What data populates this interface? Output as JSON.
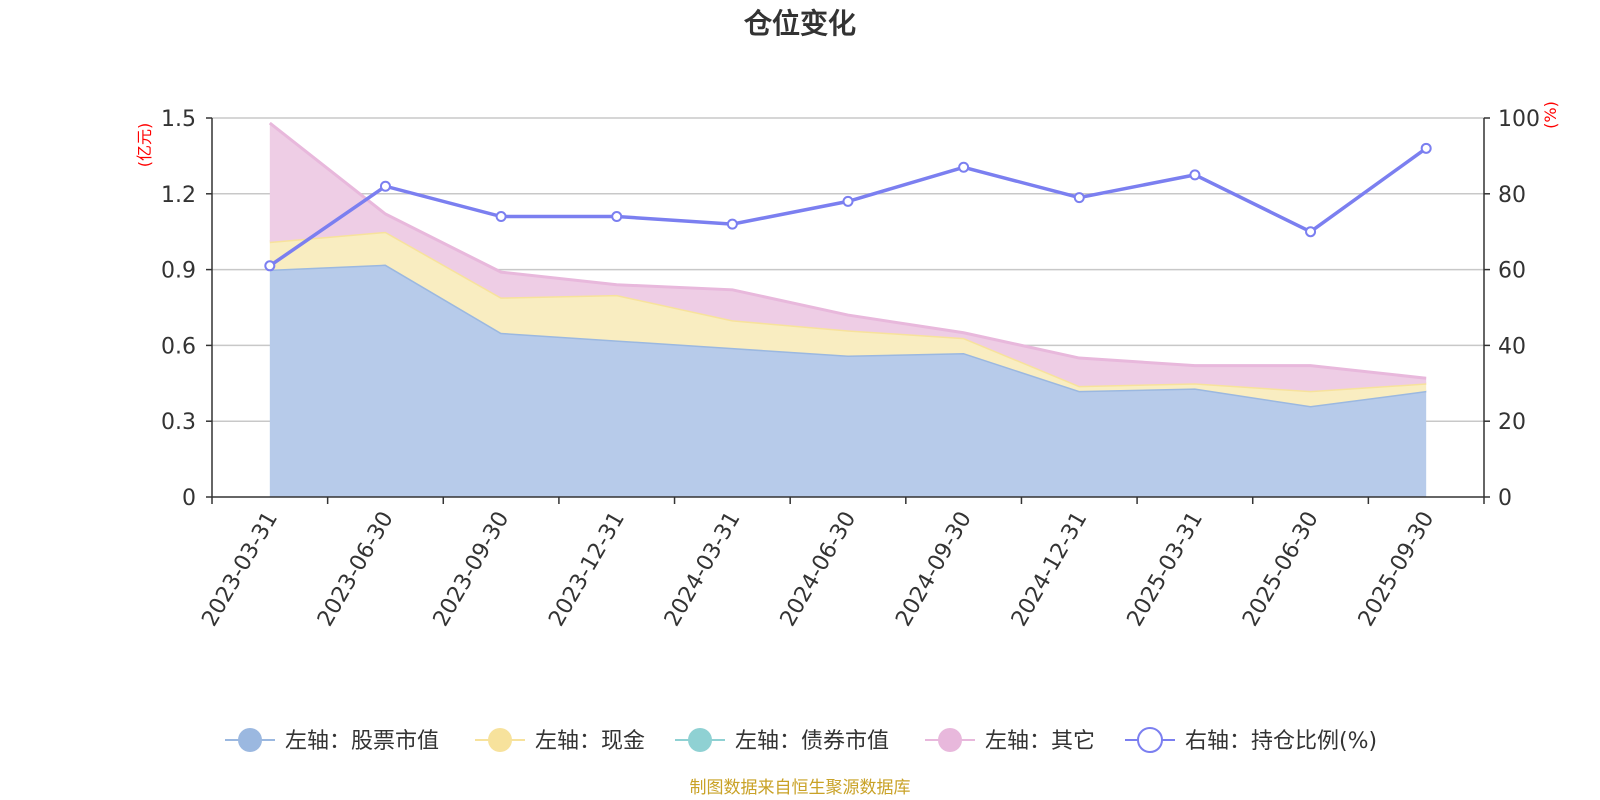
{
  "chart_data": {
    "type": "area",
    "title": "仓位变化",
    "categories": [
      "2023-03-31",
      "2023-06-30",
      "2023-09-30",
      "2023-12-31",
      "2024-03-31",
      "2024-06-30",
      "2024-09-30",
      "2024-12-31",
      "2025-03-31",
      "2025-06-30",
      "2025-09-30"
    ],
    "left_axis": {
      "unit": "(亿元)",
      "ylim": [
        0,
        1.5
      ],
      "ticks": [
        "0",
        "0.3",
        "0.6",
        "0.9",
        "1.2",
        "1.5"
      ]
    },
    "right_axis": {
      "unit": "(%)",
      "ylim": [
        0,
        100
      ],
      "ticks": [
        "0",
        "20",
        "40",
        "60",
        "80",
        "100"
      ]
    },
    "series": [
      {
        "name": "左轴：股票市值",
        "axis": "left",
        "stack": true,
        "color": "#9bb8e0",
        "fill": "#b7cbea",
        "values": [
          0.9,
          0.92,
          0.65,
          0.62,
          0.59,
          0.56,
          0.57,
          0.42,
          0.43,
          0.36,
          0.42
        ]
      },
      {
        "name": "左轴：现金",
        "axis": "left",
        "stack": true,
        "color": "#f7e29c",
        "fill": "#f9edc1",
        "values": [
          0.11,
          0.13,
          0.14,
          0.18,
          0.11,
          0.1,
          0.06,
          0.02,
          0.02,
          0.06,
          0.03
        ]
      },
      {
        "name": "左轴：债券市值",
        "axis": "left",
        "stack": true,
        "color": "#8fd1d3",
        "fill": "#b8e2e3",
        "values": [
          0,
          0,
          0,
          0,
          0,
          0,
          0,
          0,
          0,
          0,
          0
        ]
      },
      {
        "name": "左轴：其它",
        "axis": "left",
        "stack": true,
        "color": "#e8b8dc",
        "fill": "#eecde5",
        "values": [
          0.47,
          0.07,
          0.1,
          0.04,
          0.12,
          0.06,
          0.02,
          0.11,
          0.07,
          0.1,
          0.02
        ]
      },
      {
        "name": "右轴：持仓比例(%)",
        "axis": "right",
        "stack": false,
        "color": "#7b7ff0",
        "values": [
          61,
          82,
          74,
          74,
          72,
          78,
          87,
          79,
          85,
          70,
          92
        ]
      }
    ],
    "grid": true,
    "legend_position": "bottom"
  },
  "source_note": "制图数据来自恒生聚源数据库"
}
